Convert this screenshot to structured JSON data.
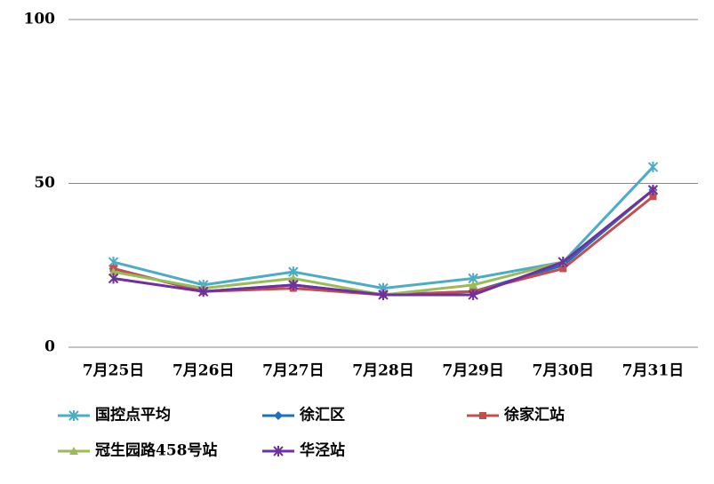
{
  "chart_data": {
    "type": "line",
    "categories": [
      "7月25日",
      "7月26日",
      "7月27日",
      "7月28日",
      "7月29日",
      "7月30日",
      "7月31日"
    ],
    "series": [
      {
        "name": "国控点平均",
        "color": "#4bacc6",
        "marker": "star",
        "values": [
          26,
          19,
          23,
          18,
          21,
          26,
          55
        ]
      },
      {
        "name": "徐汇区",
        "color": "#1f6fc0",
        "marker": "diamond",
        "values": [
          24,
          17,
          19,
          16,
          17,
          25,
          48
        ]
      },
      {
        "name": "徐家汇站",
        "color": "#c0504d",
        "marker": "square",
        "values": [
          24,
          17,
          18,
          16,
          17,
          24,
          46
        ]
      },
      {
        "name": "冠生园路458号站",
        "color": "#9bbb59",
        "marker": "triangle",
        "values": [
          23,
          18,
          21,
          16,
          19,
          26,
          48
        ]
      },
      {
        "name": "华泾站",
        "color": "#7030a0",
        "marker": "star",
        "values": [
          21,
          17,
          19,
          16,
          16,
          26,
          48
        ]
      }
    ],
    "ylim": [
      0,
      100
    ],
    "yticks": [
      0,
      50,
      100
    ],
    "grid": true,
    "legend": "bottom"
  }
}
